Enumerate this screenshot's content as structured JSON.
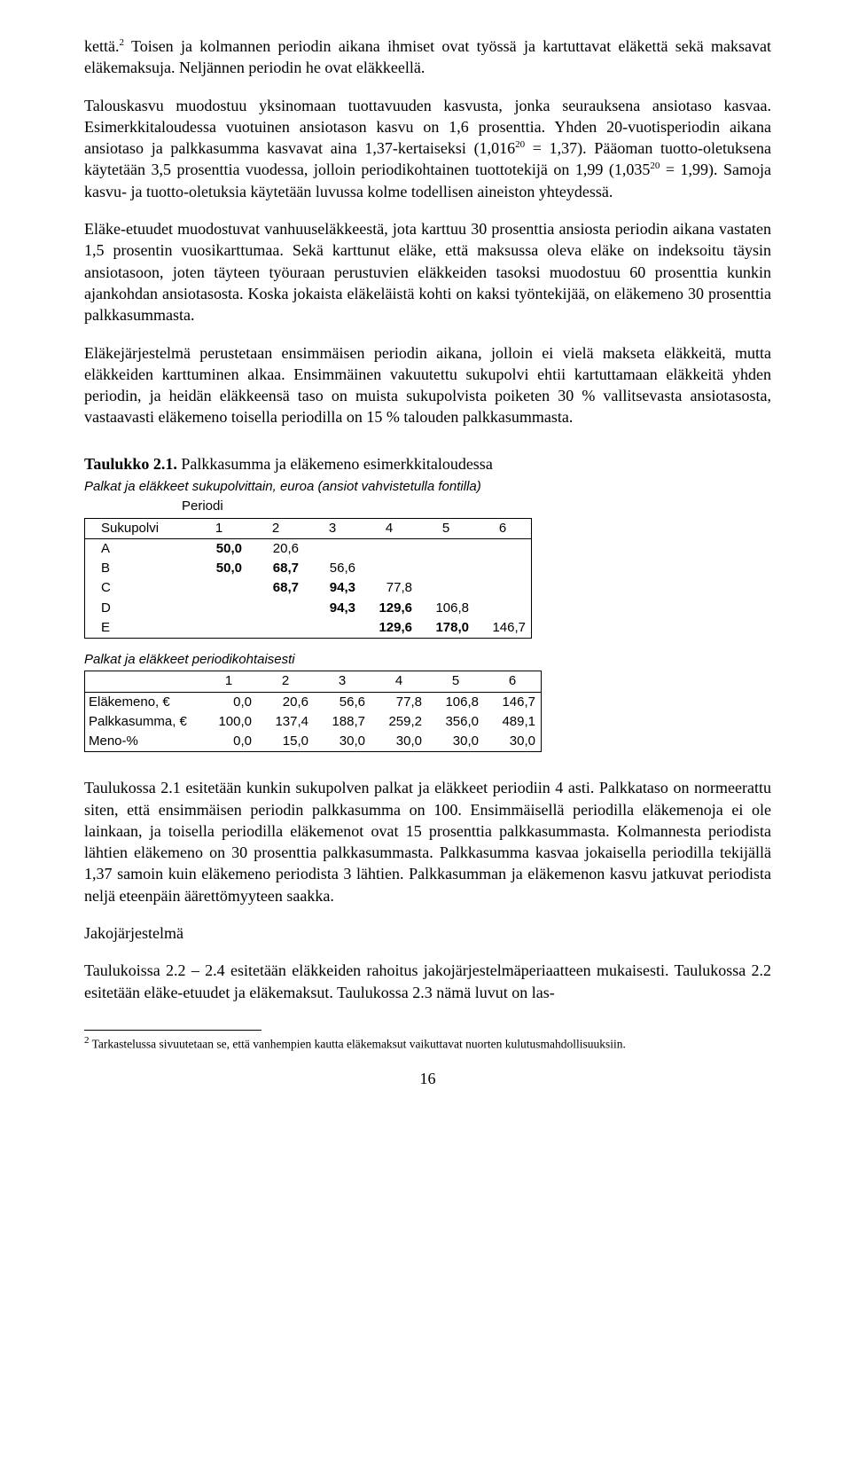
{
  "para1_a": "kettä.",
  "para1_sup": "2",
  "para1_b": " Toisen ja kolmannen periodin aikana ihmiset ovat työssä ja kartuttavat eläkettä sekä maksavat eläkemaksuja. Neljännen periodin he ovat eläkkeellä.",
  "para2_a": "Talouskasvu muodostuu yksinomaan tuottavuuden kasvusta, jonka seurauksena ansiotaso kasvaa. Esimerkkitaloudessa vuotuinen ansiotason kasvu on 1,6 prosenttia. Yhden 20-vuotisperiodin aikana ansiotaso ja palkkasumma kasvavat aina 1,37-kertaiseksi (1,016",
  "para2_sup1": "20",
  "para2_b": " = 1,37). Pääoman tuotto-oletuksena käytetään 3,5 prosenttia vuodessa, jolloin periodikohtainen tuottotekijä on 1,99 (1,035",
  "para2_sup2": "20",
  "para2_c": " = 1,99). Samoja kasvu- ja tuotto-oletuksia käytetään luvussa kolme todellisen aineiston yhteydessä.",
  "para3": "Eläke-etuudet muodostuvat vanhuuseläkkeestä, jota karttuu 30 prosenttia ansiosta periodin aikana vastaten 1,5 prosentin vuosikarttumaa. Sekä karttunut eläke, että maksussa oleva eläke on indeksoitu täysin ansiotasoon, joten täyteen työuraan perustuvien eläkkeiden tasoksi muodostuu 60 prosenttia kunkin ajankohdan ansiotasosta. Koska jokaista eläkeläistä kohti on kaksi työntekijää, on eläkemeno 30 prosenttia palkkasummasta.",
  "para4": "Eläkejärjestelmä perustetaan ensimmäisen periodin aikana, jolloin ei vielä makseta eläkkeitä, mutta eläkkeiden karttuminen alkaa. Ensimmäinen vakuutettu sukupolvi ehtii kartuttamaan eläkkeitä yhden periodin, ja heidän eläkkeensä taso on muista sukupolvista poiketen 30 % vallitsevasta ansiotasosta, vastaavasti eläkemeno toisella periodilla on 15 % talouden palkkasummasta.",
  "table_title_bold": "Taulukko 2.1.",
  "table_title_rest": " Palkkasumma ja eläkemeno esimerkkitaloudessa",
  "subheading1": "Palkat ja eläkkeet sukupolvittain, euroa (ansiot vahvistetulla fontilla)",
  "periodi": "Periodi",
  "t1": {
    "header_label": "Sukupolvi",
    "cols": [
      "1",
      "2",
      "3",
      "4",
      "5",
      "6"
    ],
    "rows": [
      {
        "label": "A",
        "cells": [
          "50,0",
          "20,6",
          "",
          "",
          "",
          ""
        ],
        "bold": [
          0
        ]
      },
      {
        "label": "B",
        "cells": [
          "50,0",
          "68,7",
          "56,6",
          "",
          "",
          ""
        ],
        "bold": [
          0,
          1
        ]
      },
      {
        "label": "C",
        "cells": [
          "",
          "68,7",
          "94,3",
          "77,8",
          "",
          ""
        ],
        "bold": [
          1,
          2
        ]
      },
      {
        "label": "D",
        "cells": [
          "",
          "",
          "94,3",
          "129,6",
          "106,8",
          ""
        ],
        "bold": [
          2,
          3
        ]
      },
      {
        "label": "E",
        "cells": [
          "",
          "",
          "",
          "129,6",
          "178,0",
          "146,7"
        ],
        "bold": [
          3,
          4
        ]
      }
    ]
  },
  "subheading2": "Palkat ja eläkkeet periodikohtaisesti",
  "t2": {
    "cols": [
      "1",
      "2",
      "3",
      "4",
      "5",
      "6"
    ],
    "rows": [
      {
        "label": "Eläkemeno, €",
        "cells": [
          "0,0",
          "20,6",
          "56,6",
          "77,8",
          "106,8",
          "146,7"
        ]
      },
      {
        "label": "Palkkasumma, €",
        "cells": [
          "100,0",
          "137,4",
          "188,7",
          "259,2",
          "356,0",
          "489,1"
        ]
      },
      {
        "label": "Meno-%",
        "cells": [
          "0,0",
          "15,0",
          "30,0",
          "30,0",
          "30,0",
          "30,0"
        ]
      }
    ]
  },
  "para5": "Taulukossa 2.1 esitetään kunkin sukupolven palkat ja eläkkeet periodiin 4 asti. Palkkataso on normeerattu siten, että ensimmäisen periodin palkkasumma on 100. Ensimmäisellä periodilla eläkemenoja ei ole lainkaan, ja toisella periodilla eläkemenot ovat 15 prosenttia palkkasummasta. Kolmannesta periodista lähtien eläkemeno on 30 prosenttia palkkasummasta. Palkkasumma kasvaa jokaisella periodilla tekijällä 1,37 samoin kuin eläkemeno periodista 3 lähtien. Palkkasumman ja eläkemenon kasvu jatkuvat periodista neljä eteenpäin äärettömyyteen saakka.",
  "jako": "Jakojärjestelmä",
  "para6": "Taulukoissa 2.2 – 2.4 esitetään eläkkeiden rahoitus jakojärjestelmäperiaatteen mukaisesti. Taulukossa 2.2 esitetään eläke-etuudet ja eläkemaksut. Taulukossa 2.3 nämä luvut on las-",
  "footnote_sup": "2",
  "footnote": " Tarkastelussa sivuutetaan se, että vanhempien kautta eläkemaksut vaikuttavat nuorten kulutusmahdollisuuksiin.",
  "page_number": "16"
}
